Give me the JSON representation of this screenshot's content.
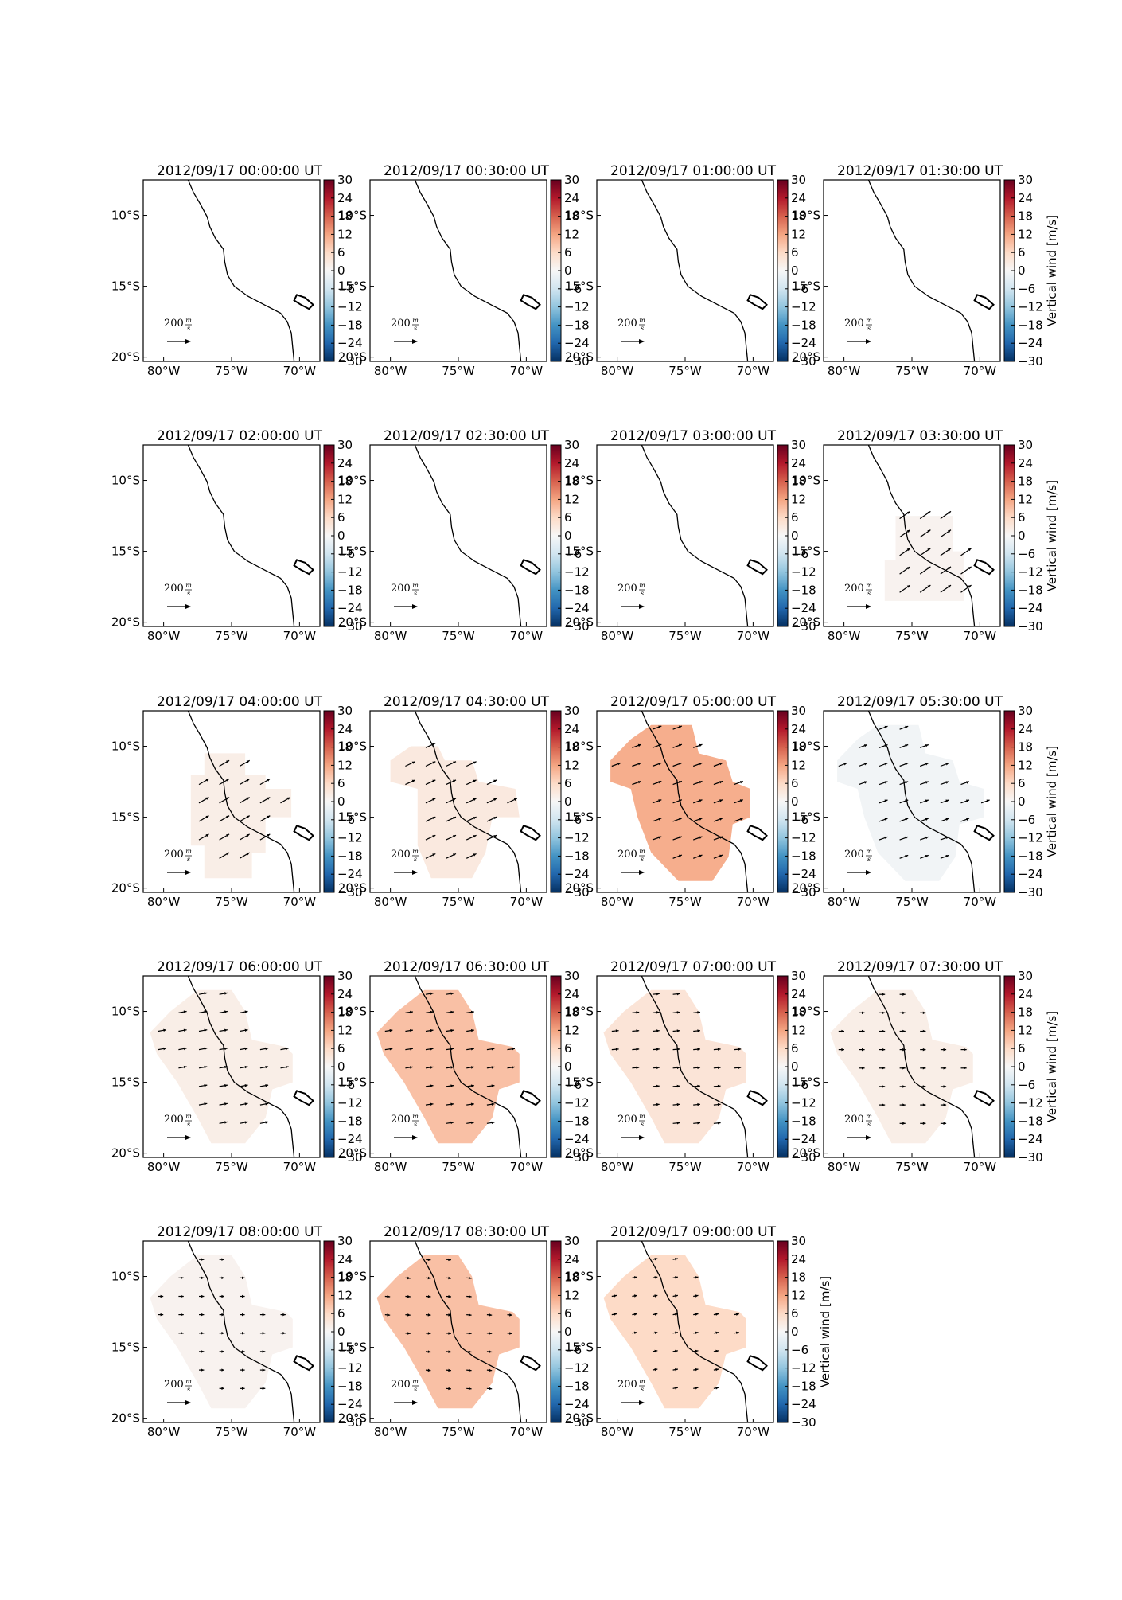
{
  "figure": {
    "colorbar_label": "Vertical wind [m/s]",
    "quiver_key_label": "200",
    "quiver_key_unit_num": "m",
    "quiver_key_unit_den": "s"
  },
  "colors": {
    "coast": "#000000",
    "cmap_neg": [
      "#053061",
      "#2166ac",
      "#4393c3",
      "#92c5de",
      "#d1e5f0",
      "#f7f7f7"
    ],
    "cmap_pos": [
      "#f7f7f7",
      "#fddbc7",
      "#f4a582",
      "#d6604d",
      "#b2182b",
      "#67001f"
    ]
  },
  "chart_data": {
    "type": "map-panels",
    "x_ticks": [
      "80°W",
      "75°W",
      "70°W"
    ],
    "x_tick_values": [
      -80,
      -75,
      -70
    ],
    "y_ticks": [
      "10°S",
      "15°S",
      "20°S"
    ],
    "y_tick_values": [
      -10,
      -15,
      -20
    ],
    "xlim": [
      -81.5,
      -68.5
    ],
    "ylim": [
      -20.3,
      -7.5
    ],
    "colorbar": {
      "vmin": -30,
      "vmax": 30,
      "ticks": [
        "30",
        "24",
        "18",
        "12",
        "6",
        "0",
        "−6",
        "−12",
        "−18",
        "−24",
        "−30"
      ],
      "tick_values": [
        30,
        24,
        18,
        12,
        6,
        0,
        -6,
        -12,
        -18,
        -24,
        -30
      ]
    },
    "quiver_key_speed": 200,
    "coastline": [
      [
        -78.2,
        -7.5
      ],
      [
        -77.8,
        -8.4
      ],
      [
        -77.3,
        -9.2
      ],
      [
        -76.8,
        -10.1
      ],
      [
        -76.6,
        -10.8
      ],
      [
        -76.2,
        -11.6
      ],
      [
        -75.6,
        -12.4
      ],
      [
        -75.5,
        -13.3
      ],
      [
        -75.3,
        -14.2
      ],
      [
        -74.8,
        -15.0
      ],
      [
        -73.8,
        -15.7
      ],
      [
        -72.6,
        -16.3
      ],
      [
        -71.4,
        -16.9
      ],
      [
        -70.9,
        -17.5
      ],
      [
        -70.6,
        -18.3
      ],
      [
        -70.5,
        -19.3
      ],
      [
        -70.4,
        -20.3
      ]
    ],
    "lake": [
      [
        -70.2,
        -15.6
      ],
      [
        -69.6,
        -15.8
      ],
      [
        -69.0,
        -16.3
      ],
      [
        -69.3,
        -16.6
      ],
      [
        -69.9,
        -16.3
      ],
      [
        -70.4,
        -16.0
      ]
    ],
    "panels": [
      {
        "title": "2012/09/17 00:00:00 UT",
        "vertical_wind": null,
        "arrow_direction_deg": null,
        "arrow_speed": null
      },
      {
        "title": "2012/09/17 00:30:00 UT",
        "vertical_wind": null,
        "arrow_direction_deg": null,
        "arrow_speed": null
      },
      {
        "title": "2012/09/17 01:00:00 UT",
        "vertical_wind": null,
        "arrow_direction_deg": null,
        "arrow_speed": null
      },
      {
        "title": "2012/09/17 01:30:00 UT",
        "vertical_wind": null,
        "arrow_direction_deg": null,
        "arrow_speed": null
      },
      {
        "title": "2012/09/17 02:00:00 UT",
        "vertical_wind": null,
        "arrow_direction_deg": null,
        "arrow_speed": null
      },
      {
        "title": "2012/09/17 02:30:00 UT",
        "vertical_wind": null,
        "arrow_direction_deg": null,
        "arrow_speed": null
      },
      {
        "title": "2012/09/17 03:00:00 UT",
        "vertical_wind": null,
        "arrow_direction_deg": null,
        "arrow_speed": null
      },
      {
        "title": "2012/09/17 03:30:00 UT",
        "vertical_wind": 1,
        "arrow_direction_deg": 35,
        "arrow_speed": 200,
        "region": [
          [
            -76.2,
            -12.5
          ],
          [
            -72.0,
            -12.5
          ],
          [
            -72.0,
            -15.0
          ],
          [
            -71.2,
            -15.0
          ],
          [
            -71.2,
            -18.5
          ],
          [
            -77.0,
            -18.5
          ],
          [
            -77.0,
            -15.6
          ],
          [
            -76.2,
            -15.6
          ]
        ]
      },
      {
        "title": "2012/09/17 04:00:00 UT",
        "vertical_wind": 2,
        "arrow_direction_deg": 30,
        "arrow_speed": 180,
        "region": [
          [
            -77.0,
            -10.5
          ],
          [
            -74.0,
            -10.5
          ],
          [
            -74.0,
            -12.0
          ],
          [
            -72.5,
            -12.0
          ],
          [
            -72.5,
            -13.0
          ],
          [
            -70.6,
            -13.0
          ],
          [
            -70.6,
            -15.0
          ],
          [
            -72.5,
            -15.0
          ],
          [
            -72.5,
            -17.5
          ],
          [
            -73.5,
            -17.5
          ],
          [
            -73.5,
            -19.3
          ],
          [
            -77.0,
            -19.3
          ],
          [
            -77.0,
            -17.0
          ],
          [
            -78.0,
            -17.0
          ],
          [
            -78.0,
            -12.0
          ],
          [
            -77.0,
            -12.0
          ]
        ]
      },
      {
        "title": "2012/09/17 04:30:00 UT",
        "vertical_wind": 3,
        "arrow_direction_deg": 25,
        "arrow_speed": 170,
        "region": [
          [
            -80.0,
            -11.0
          ],
          [
            -78.5,
            -10.0
          ],
          [
            -76.5,
            -10.0
          ],
          [
            -76.0,
            -11.0
          ],
          [
            -74.0,
            -11.0
          ],
          [
            -73.5,
            -12.5
          ],
          [
            -70.8,
            -13.0
          ],
          [
            -70.5,
            -15.0
          ],
          [
            -72.5,
            -15.0
          ],
          [
            -73.0,
            -17.5
          ],
          [
            -74.0,
            -19.3
          ],
          [
            -77.0,
            -19.3
          ],
          [
            -78.0,
            -17.0
          ],
          [
            -78.0,
            -13.0
          ],
          [
            -80.0,
            -12.5
          ]
        ]
      },
      {
        "title": "2012/09/17 05:00:00 UT",
        "vertical_wind": 11,
        "arrow_direction_deg": 20,
        "arrow_speed": 150,
        "region": [
          [
            -79.0,
            -9.5
          ],
          [
            -77.5,
            -8.5
          ],
          [
            -74.5,
            -8.5
          ],
          [
            -74.0,
            -10.5
          ],
          [
            -72.0,
            -11.0
          ],
          [
            -71.5,
            -12.5
          ],
          [
            -70.2,
            -13.0
          ],
          [
            -70.2,
            -15.0
          ],
          [
            -71.5,
            -15.5
          ],
          [
            -71.8,
            -17.8
          ],
          [
            -73.0,
            -19.5
          ],
          [
            -75.5,
            -19.5
          ],
          [
            -77.5,
            -17.5
          ],
          [
            -78.5,
            -15.0
          ],
          [
            -79.0,
            -13.0
          ],
          [
            -80.5,
            -12.5
          ],
          [
            -80.5,
            -11.0
          ]
        ]
      },
      {
        "title": "2012/09/17 05:30:00 UT",
        "vertical_wind": -1,
        "arrow_direction_deg": 20,
        "arrow_speed": 140,
        "region": [
          [
            -79.0,
            -9.5
          ],
          [
            -77.5,
            -8.5
          ],
          [
            -74.5,
            -8.5
          ],
          [
            -74.0,
            -10.5
          ],
          [
            -72.0,
            -11.0
          ],
          [
            -71.5,
            -12.5
          ],
          [
            -69.7,
            -13.0
          ],
          [
            -69.7,
            -15.0
          ],
          [
            -71.5,
            -15.5
          ],
          [
            -71.8,
            -17.8
          ],
          [
            -73.0,
            -19.5
          ],
          [
            -75.5,
            -19.5
          ],
          [
            -77.5,
            -17.5
          ],
          [
            -78.5,
            -15.0
          ],
          [
            -79.0,
            -13.0
          ],
          [
            -80.5,
            -12.5
          ],
          [
            -80.5,
            -11.0
          ]
        ]
      },
      {
        "title": "2012/09/17 06:00:00 UT",
        "vertical_wind": 2,
        "arrow_direction_deg": 10,
        "arrow_speed": 130,
        "region": [
          [
            -79.5,
            -10.0
          ],
          [
            -77.5,
            -8.5
          ],
          [
            -75.0,
            -8.5
          ],
          [
            -74.0,
            -10.0
          ],
          [
            -73.5,
            -12.0
          ],
          [
            -71.0,
            -12.5
          ],
          [
            -70.5,
            -13.0
          ],
          [
            -70.5,
            -15.0
          ],
          [
            -72.0,
            -15.5
          ],
          [
            -72.5,
            -17.5
          ],
          [
            -74.0,
            -19.3
          ],
          [
            -76.5,
            -19.3
          ],
          [
            -77.5,
            -17.5
          ],
          [
            -79.0,
            -15.0
          ],
          [
            -80.5,
            -13.0
          ],
          [
            -81.0,
            -11.5
          ]
        ]
      },
      {
        "title": "2012/09/17 06:30:00 UT",
        "vertical_wind": 9,
        "arrow_direction_deg": 8,
        "arrow_speed": 120,
        "region": [
          [
            -79.5,
            -10.0
          ],
          [
            -77.5,
            -8.5
          ],
          [
            -75.0,
            -8.5
          ],
          [
            -74.0,
            -10.0
          ],
          [
            -73.5,
            -12.0
          ],
          [
            -71.0,
            -12.5
          ],
          [
            -70.5,
            -13.0
          ],
          [
            -70.5,
            -15.0
          ],
          [
            -72.0,
            -15.5
          ],
          [
            -72.5,
            -17.5
          ],
          [
            -74.0,
            -19.3
          ],
          [
            -76.5,
            -19.3
          ],
          [
            -77.5,
            -17.5
          ],
          [
            -79.0,
            -15.0
          ],
          [
            -80.5,
            -13.0
          ],
          [
            -81.0,
            -11.5
          ]
        ]
      },
      {
        "title": "2012/09/17 07:00:00 UT",
        "vertical_wind": 4,
        "arrow_direction_deg": 5,
        "arrow_speed": 110,
        "region": [
          [
            -79.5,
            -10.0
          ],
          [
            -77.5,
            -8.5
          ],
          [
            -75.0,
            -8.5
          ],
          [
            -74.0,
            -10.0
          ],
          [
            -73.5,
            -12.0
          ],
          [
            -71.0,
            -12.5
          ],
          [
            -70.5,
            -13.0
          ],
          [
            -70.5,
            -15.0
          ],
          [
            -72.0,
            -15.5
          ],
          [
            -72.5,
            -17.5
          ],
          [
            -74.0,
            -19.3
          ],
          [
            -76.5,
            -19.3
          ],
          [
            -77.5,
            -17.5
          ],
          [
            -79.0,
            -15.0
          ],
          [
            -80.5,
            -13.0
          ],
          [
            -81.0,
            -11.5
          ]
        ]
      },
      {
        "title": "2012/09/17 07:30:00 UT",
        "vertical_wind": 2,
        "arrow_direction_deg": 0,
        "arrow_speed": 90,
        "region": [
          [
            -79.5,
            -10.0
          ],
          [
            -77.5,
            -8.5
          ],
          [
            -75.0,
            -8.5
          ],
          [
            -74.0,
            -10.0
          ],
          [
            -73.5,
            -12.0
          ],
          [
            -71.0,
            -12.5
          ],
          [
            -70.5,
            -13.0
          ],
          [
            -70.5,
            -15.0
          ],
          [
            -72.0,
            -15.5
          ],
          [
            -72.5,
            -17.5
          ],
          [
            -74.0,
            -19.3
          ],
          [
            -76.5,
            -19.3
          ],
          [
            -77.5,
            -17.5
          ],
          [
            -79.0,
            -15.0
          ],
          [
            -80.5,
            -13.0
          ],
          [
            -81.0,
            -11.5
          ]
        ]
      },
      {
        "title": "2012/09/17 08:00:00 UT",
        "vertical_wind": 1,
        "arrow_direction_deg": 0,
        "arrow_speed": 80,
        "region": [
          [
            -79.5,
            -10.0
          ],
          [
            -77.5,
            -8.5
          ],
          [
            -75.0,
            -8.5
          ],
          [
            -74.0,
            -10.0
          ],
          [
            -73.5,
            -12.0
          ],
          [
            -71.0,
            -12.5
          ],
          [
            -70.5,
            -13.0
          ],
          [
            -70.5,
            -15.0
          ],
          [
            -72.0,
            -15.5
          ],
          [
            -72.5,
            -17.5
          ],
          [
            -74.0,
            -19.3
          ],
          [
            -76.5,
            -19.3
          ],
          [
            -77.5,
            -17.5
          ],
          [
            -79.0,
            -15.0
          ],
          [
            -80.5,
            -13.0
          ],
          [
            -81.0,
            -11.5
          ]
        ]
      },
      {
        "title": "2012/09/17 08:30:00 UT",
        "vertical_wind": 9,
        "arrow_direction_deg": -5,
        "arrow_speed": 80,
        "region": [
          [
            -79.5,
            -10.0
          ],
          [
            -77.5,
            -8.5
          ],
          [
            -75.0,
            -8.5
          ],
          [
            -74.0,
            -10.0
          ],
          [
            -73.5,
            -12.0
          ],
          [
            -71.0,
            -12.5
          ],
          [
            -70.5,
            -13.0
          ],
          [
            -70.5,
            -15.0
          ],
          [
            -72.0,
            -15.5
          ],
          [
            -72.5,
            -17.5
          ],
          [
            -74.0,
            -19.3
          ],
          [
            -76.5,
            -19.3
          ],
          [
            -77.5,
            -17.5
          ],
          [
            -79.0,
            -15.0
          ],
          [
            -80.5,
            -13.0
          ],
          [
            -81.0,
            -11.5
          ]
        ]
      },
      {
        "title": "2012/09/17 09:00:00 UT",
        "vertical_wind": 6,
        "arrow_direction_deg": 10,
        "arrow_speed": 80,
        "region": [
          [
            -79.5,
            -10.0
          ],
          [
            -77.5,
            -8.5
          ],
          [
            -75.0,
            -8.5
          ],
          [
            -74.0,
            -10.0
          ],
          [
            -73.5,
            -12.0
          ],
          [
            -71.0,
            -12.5
          ],
          [
            -70.5,
            -13.0
          ],
          [
            -70.5,
            -15.0
          ],
          [
            -72.0,
            -15.5
          ],
          [
            -72.5,
            -17.5
          ],
          [
            -74.0,
            -19.3
          ],
          [
            -76.5,
            -19.3
          ],
          [
            -77.5,
            -17.5
          ],
          [
            -79.0,
            -15.0
          ],
          [
            -80.5,
            -13.0
          ],
          [
            -81.0,
            -11.5
          ]
        ]
      }
    ]
  }
}
